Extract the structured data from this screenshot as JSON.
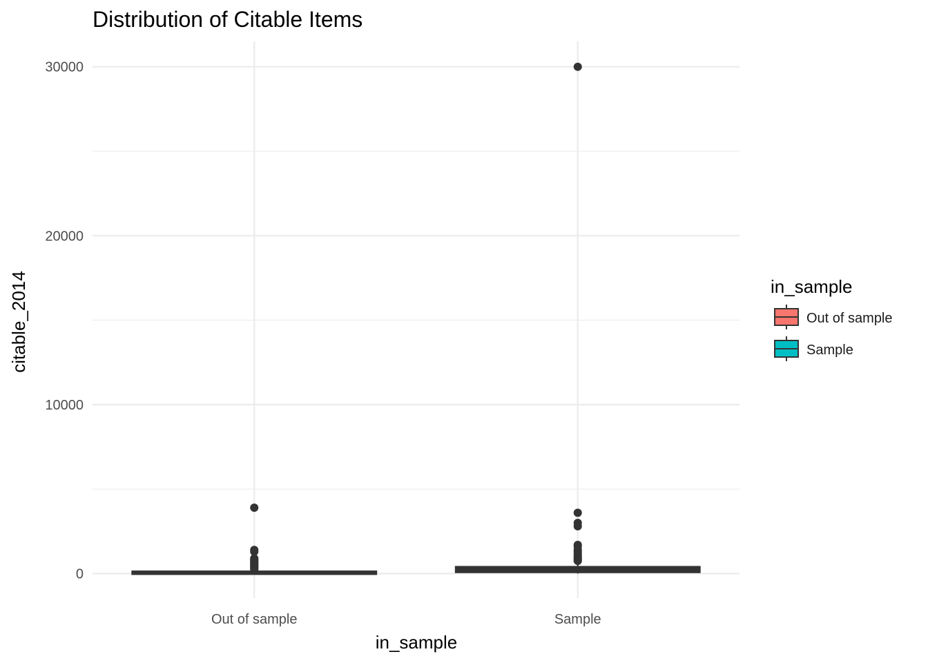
{
  "chart_data": {
    "type": "boxplot",
    "title": "Distribution of Citable Items",
    "xlabel": "in_sample",
    "ylabel": "citable_2014",
    "ylim": [
      -1450,
      31500
    ],
    "y_ticks": [
      0,
      10000,
      20000,
      30000
    ],
    "y_tick_labels": [
      "0",
      "10000",
      "20000",
      "30000"
    ],
    "y_minor_ticks": [
      5000,
      15000,
      25000
    ],
    "categories": [
      "Out of sample",
      "Sample"
    ],
    "grid": true,
    "legend": {
      "title": "in_sample",
      "position": "right",
      "entries": [
        {
          "label": "Out of sample",
          "color": "#F8766D"
        },
        {
          "label": "Sample",
          "color": "#00BFC4"
        }
      ]
    },
    "series": [
      {
        "name": "Out of sample",
        "color": "#F8766D",
        "q1": 10,
        "median": 40,
        "q3": 90,
        "whisker_low": 0,
        "whisker_high": 200,
        "outliers": [
          3900,
          1400,
          1300,
          900,
          850,
          800,
          750,
          700,
          650,
          600,
          550,
          500,
          450,
          400,
          350,
          300,
          250
        ]
      },
      {
        "name": "Sample",
        "color": "#00BFC4",
        "q1": 120,
        "median": 220,
        "q3": 360,
        "whisker_low": 0,
        "whisker_high": 700,
        "outliers": [
          30000,
          3600,
          3000,
          2800,
          1700,
          1600,
          1400,
          1300,
          1200,
          1100,
          1000,
          900,
          850,
          800,
          750
        ]
      }
    ]
  },
  "colors": {
    "grid": "#ebebeb",
    "box_line": "#333333",
    "outlier": "#333333"
  }
}
